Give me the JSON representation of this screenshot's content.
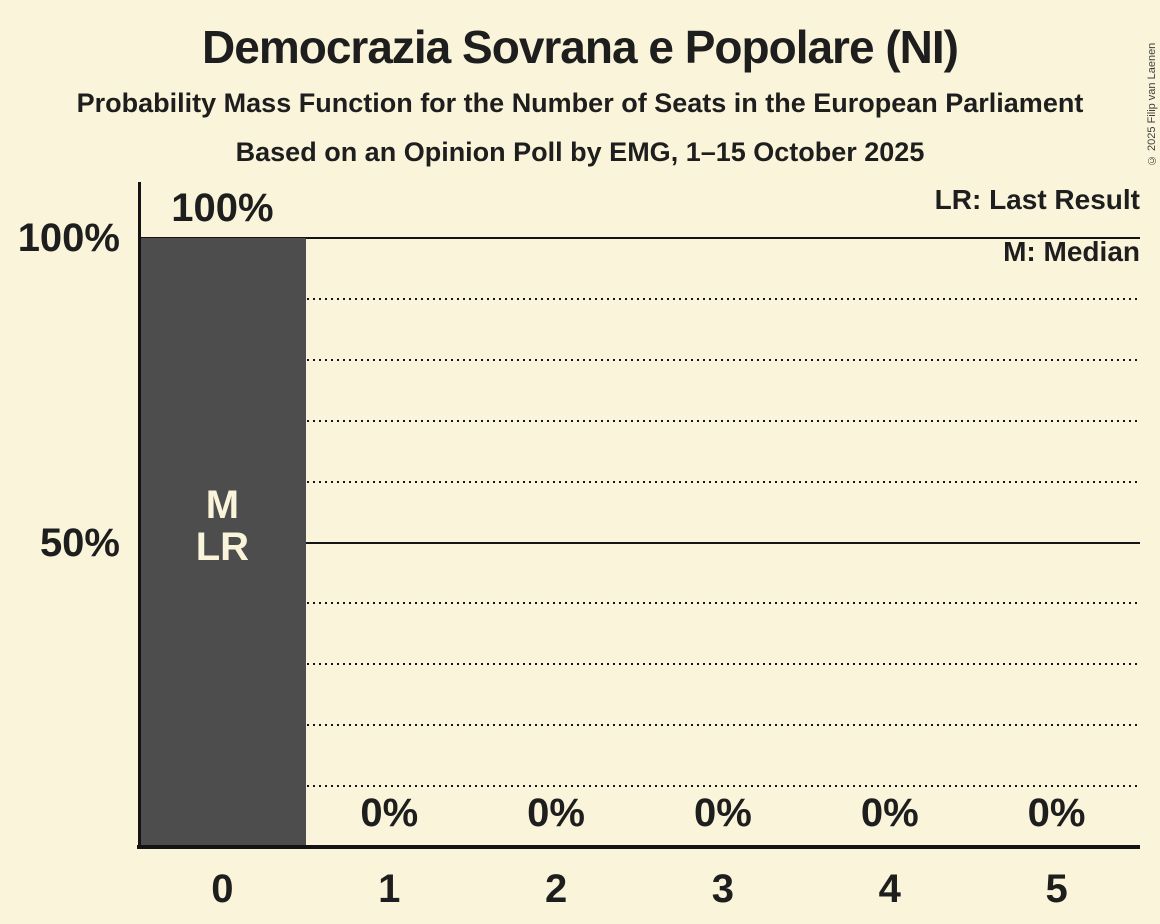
{
  "header": {
    "title": "Democrazia Sovrana e Popolare (NI)",
    "subtitle": "Probability Mass Function for the Number of Seats in the European Parliament",
    "source_line": "Based on an Opinion Poll by EMG, 1–15 October 2025"
  },
  "copyright": "© 2025 Filip van Laenen",
  "legend": {
    "lr": "LR: Last Result",
    "m": "M: Median"
  },
  "chart_data": {
    "type": "bar",
    "title": "Democrazia Sovrana e Popolare (NI)",
    "xlabel": "",
    "ylabel": "",
    "categories": [
      "0",
      "1",
      "2",
      "3",
      "4",
      "5"
    ],
    "values": [
      100,
      0,
      0,
      0,
      0,
      0
    ],
    "value_labels": [
      "100%",
      "0%",
      "0%",
      "0%",
      "0%",
      "0%"
    ],
    "ylim": [
      0,
      100
    ],
    "yticks": [
      {
        "value": 100,
        "label": "100%"
      },
      {
        "value": 50,
        "label": "50%"
      }
    ],
    "solid_gridlines": [
      100,
      50
    ],
    "dotted_gridlines": [
      90,
      80,
      70,
      60,
      40,
      30,
      20,
      10
    ],
    "annotations": [
      {
        "category": "0",
        "lines": [
          "M",
          "LR"
        ]
      }
    ],
    "legend_position": "top-right",
    "grid": true
  },
  "colors": {
    "background": "#FAF5DA",
    "bar": "#4D4D4D",
    "text": "#1E1E1E",
    "bar_label_text": "#FAF5DA"
  }
}
